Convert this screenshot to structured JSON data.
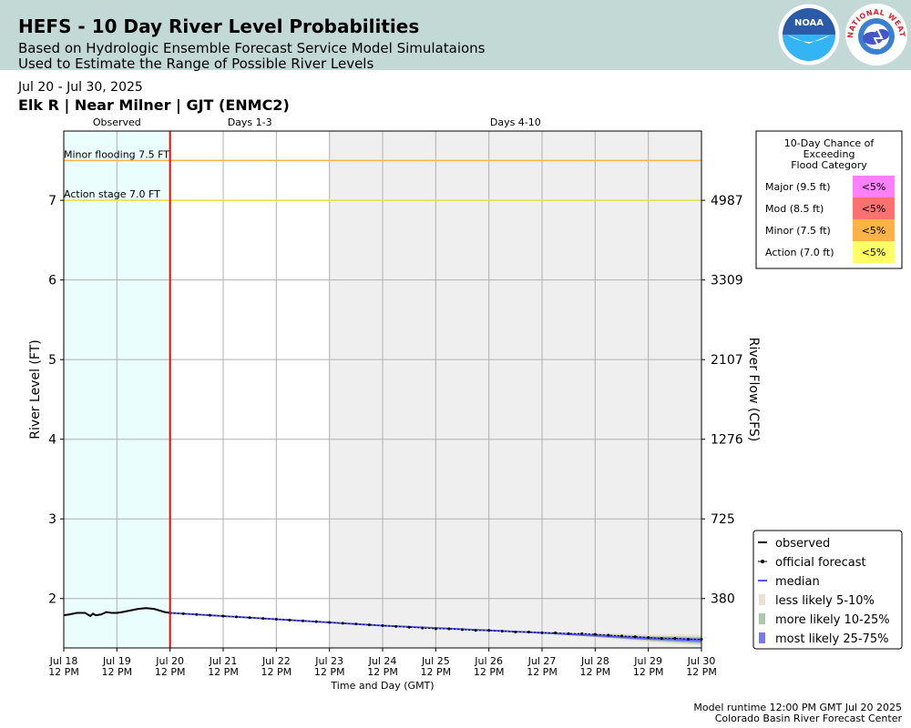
{
  "header": {
    "title": "HEFS - 10 Day River Level Probabilities",
    "subtitle_1": "Based on Hydrologic Ensemble Forecast Service Model Simulataions",
    "subtitle_2": "Used to Estimate the Range of Possible River Levels",
    "noaa_logo_text": "NOAA",
    "nws_logo_text": "NATIONAL WEATHER SERVICE"
  },
  "date_range": "Jul 20 - Jul 30, 2025",
  "station": "Elk R | Near Milner | GJT (ENMC2)",
  "footer": {
    "line_1": "Model runtime 12:00 PM GMT Jul 20 2025",
    "line_2": "Colorado Basin River Forecast Center"
  },
  "colors": {
    "observed_shade": "#eafefe",
    "forecast_shade": "#efefef",
    "now_line": "#ff0000",
    "minor_line": "#ffb347",
    "action_line": "#e8e040",
    "median": "#5555ff",
    "less_likely": "#e8e0d4",
    "more_likely": "#a8cca8",
    "most_likely": "#7878f0",
    "major_cell": "#ff80ff",
    "mod_cell": "#ff7070",
    "minor_cell": "#ffb347",
    "action_cell": "#ffff66"
  },
  "chart_data": {
    "type": "line",
    "period_labels": [
      "Observed",
      "Days 1-3",
      "Days 4-10"
    ],
    "xlabel": "Time and Day (GMT)",
    "ylabel": "River Level (FT)",
    "ylabel_right": "River Flow (CFS)",
    "x_ticks": [
      "Jul 18",
      "Jul 19",
      "Jul 20",
      "Jul 21",
      "Jul 22",
      "Jul 23",
      "Jul 24",
      "Jul 25",
      "Jul 26",
      "Jul 27",
      "Jul 28",
      "Jul 29",
      "Jul 30"
    ],
    "x_tick_time": "12 PM",
    "x_range_days": [
      18.5,
      30.5
    ],
    "forecast_start_day": 20.5,
    "days_4_10_start_day": 23.5,
    "ylim": [
      1.38,
      7.87
    ],
    "y_ticks": [
      2,
      3,
      4,
      5,
      6,
      7
    ],
    "right_ticks": [
      {
        "stage": 2,
        "flow": "380"
      },
      {
        "stage": 3,
        "flow": "725"
      },
      {
        "stage": 4,
        "flow": "1276"
      },
      {
        "stage": 5,
        "flow": "2107"
      },
      {
        "stage": 6,
        "flow": "3309"
      },
      {
        "stage": 7,
        "flow": "4987"
      }
    ],
    "thresholds": [
      {
        "label": "Minor flooding 7.5 FT",
        "stage": 7.5
      },
      {
        "label": "Action stage 7.0 FT",
        "stage": 7.0
      }
    ],
    "observed": {
      "name": "observed",
      "x": [
        18.5,
        18.6,
        18.75,
        18.9,
        19.0,
        19.05,
        19.1,
        19.2,
        19.3,
        19.4,
        19.5,
        19.6,
        19.75,
        19.9,
        20.05,
        20.2,
        20.3,
        20.4,
        20.5
      ],
      "y": [
        1.79,
        1.8,
        1.82,
        1.82,
        1.78,
        1.81,
        1.79,
        1.8,
        1.83,
        1.82,
        1.82,
        1.83,
        1.85,
        1.87,
        1.88,
        1.87,
        1.85,
        1.83,
        1.82
      ]
    },
    "official_forecast": {
      "name": "official forecast",
      "x": [
        20.5,
        20.75,
        21.0,
        21.25,
        21.5,
        21.75,
        22.0,
        22.25,
        22.5,
        22.75,
        23.0,
        23.25,
        23.5,
        23.75,
        24.0,
        24.25,
        24.5,
        24.75,
        25.0,
        25.25,
        25.5,
        25.75,
        26.0,
        26.25,
        26.5,
        26.75,
        27.0,
        27.25,
        27.5,
        27.75,
        28.0,
        28.25,
        28.5,
        28.75,
        29.0,
        29.25,
        29.5,
        29.75,
        30.0,
        30.25,
        30.5
      ],
      "y": [
        1.82,
        1.81,
        1.8,
        1.79,
        1.78,
        1.77,
        1.76,
        1.75,
        1.74,
        1.73,
        1.72,
        1.71,
        1.7,
        1.69,
        1.68,
        1.67,
        1.66,
        1.65,
        1.64,
        1.63,
        1.62,
        1.62,
        1.61,
        1.6,
        1.6,
        1.59,
        1.58,
        1.58,
        1.57,
        1.57,
        1.56,
        1.56,
        1.55,
        1.54,
        1.53,
        1.52,
        1.51,
        1.5,
        1.5,
        1.49,
        1.49
      ]
    },
    "median": {
      "name": "median",
      "x": [
        20.5,
        21.5,
        22.5,
        23.5,
        24.5,
        25.5,
        26.5,
        27.5,
        28.5,
        29.5,
        30.5
      ],
      "y": [
        1.82,
        1.78,
        1.74,
        1.7,
        1.66,
        1.63,
        1.6,
        1.57,
        1.54,
        1.5,
        1.48
      ]
    },
    "bands": [
      {
        "name": "less likely 5-10%",
        "x": [
          27.5,
          28.5,
          29.5,
          30.5
        ],
        "lower": [
          1.56,
          1.51,
          1.45,
          1.41
        ],
        "upper": [
          1.58,
          1.57,
          1.55,
          1.55
        ]
      },
      {
        "name": "more likely 10-25%",
        "x": [
          27.5,
          28.5,
          29.5,
          30.5
        ],
        "lower": [
          1.56,
          1.52,
          1.47,
          1.43
        ],
        "upper": [
          1.57,
          1.56,
          1.53,
          1.52
        ]
      },
      {
        "name": "most likely 25-75%",
        "x": [
          26.5,
          27.5,
          28.5,
          29.5,
          30.5
        ],
        "lower": [
          1.6,
          1.56,
          1.52,
          1.48,
          1.45
        ],
        "upper": [
          1.6,
          1.58,
          1.55,
          1.52,
          1.5
        ]
      }
    ],
    "legend_labels": [
      "observed",
      "official forecast",
      "median",
      "less likely 5-10%",
      "more likely 10-25%",
      "most likely 25-75%"
    ],
    "legend_position": "bottom-right"
  },
  "flood_table": {
    "title_lines": [
      "10-Day Chance of",
      "Exceeding",
      "Flood Category"
    ],
    "rows": [
      {
        "label": "Major (9.5 ft)",
        "value": "<5%",
        "color": "#ff80ff"
      },
      {
        "label": "Mod (8.5 ft)",
        "value": "<5%",
        "color": "#ff7070"
      },
      {
        "label": "Minor (7.5 ft)",
        "value": "<5%",
        "color": "#ffb347"
      },
      {
        "label": "Action (7.0 ft)",
        "value": "<5%",
        "color": "#ffff66"
      }
    ]
  }
}
